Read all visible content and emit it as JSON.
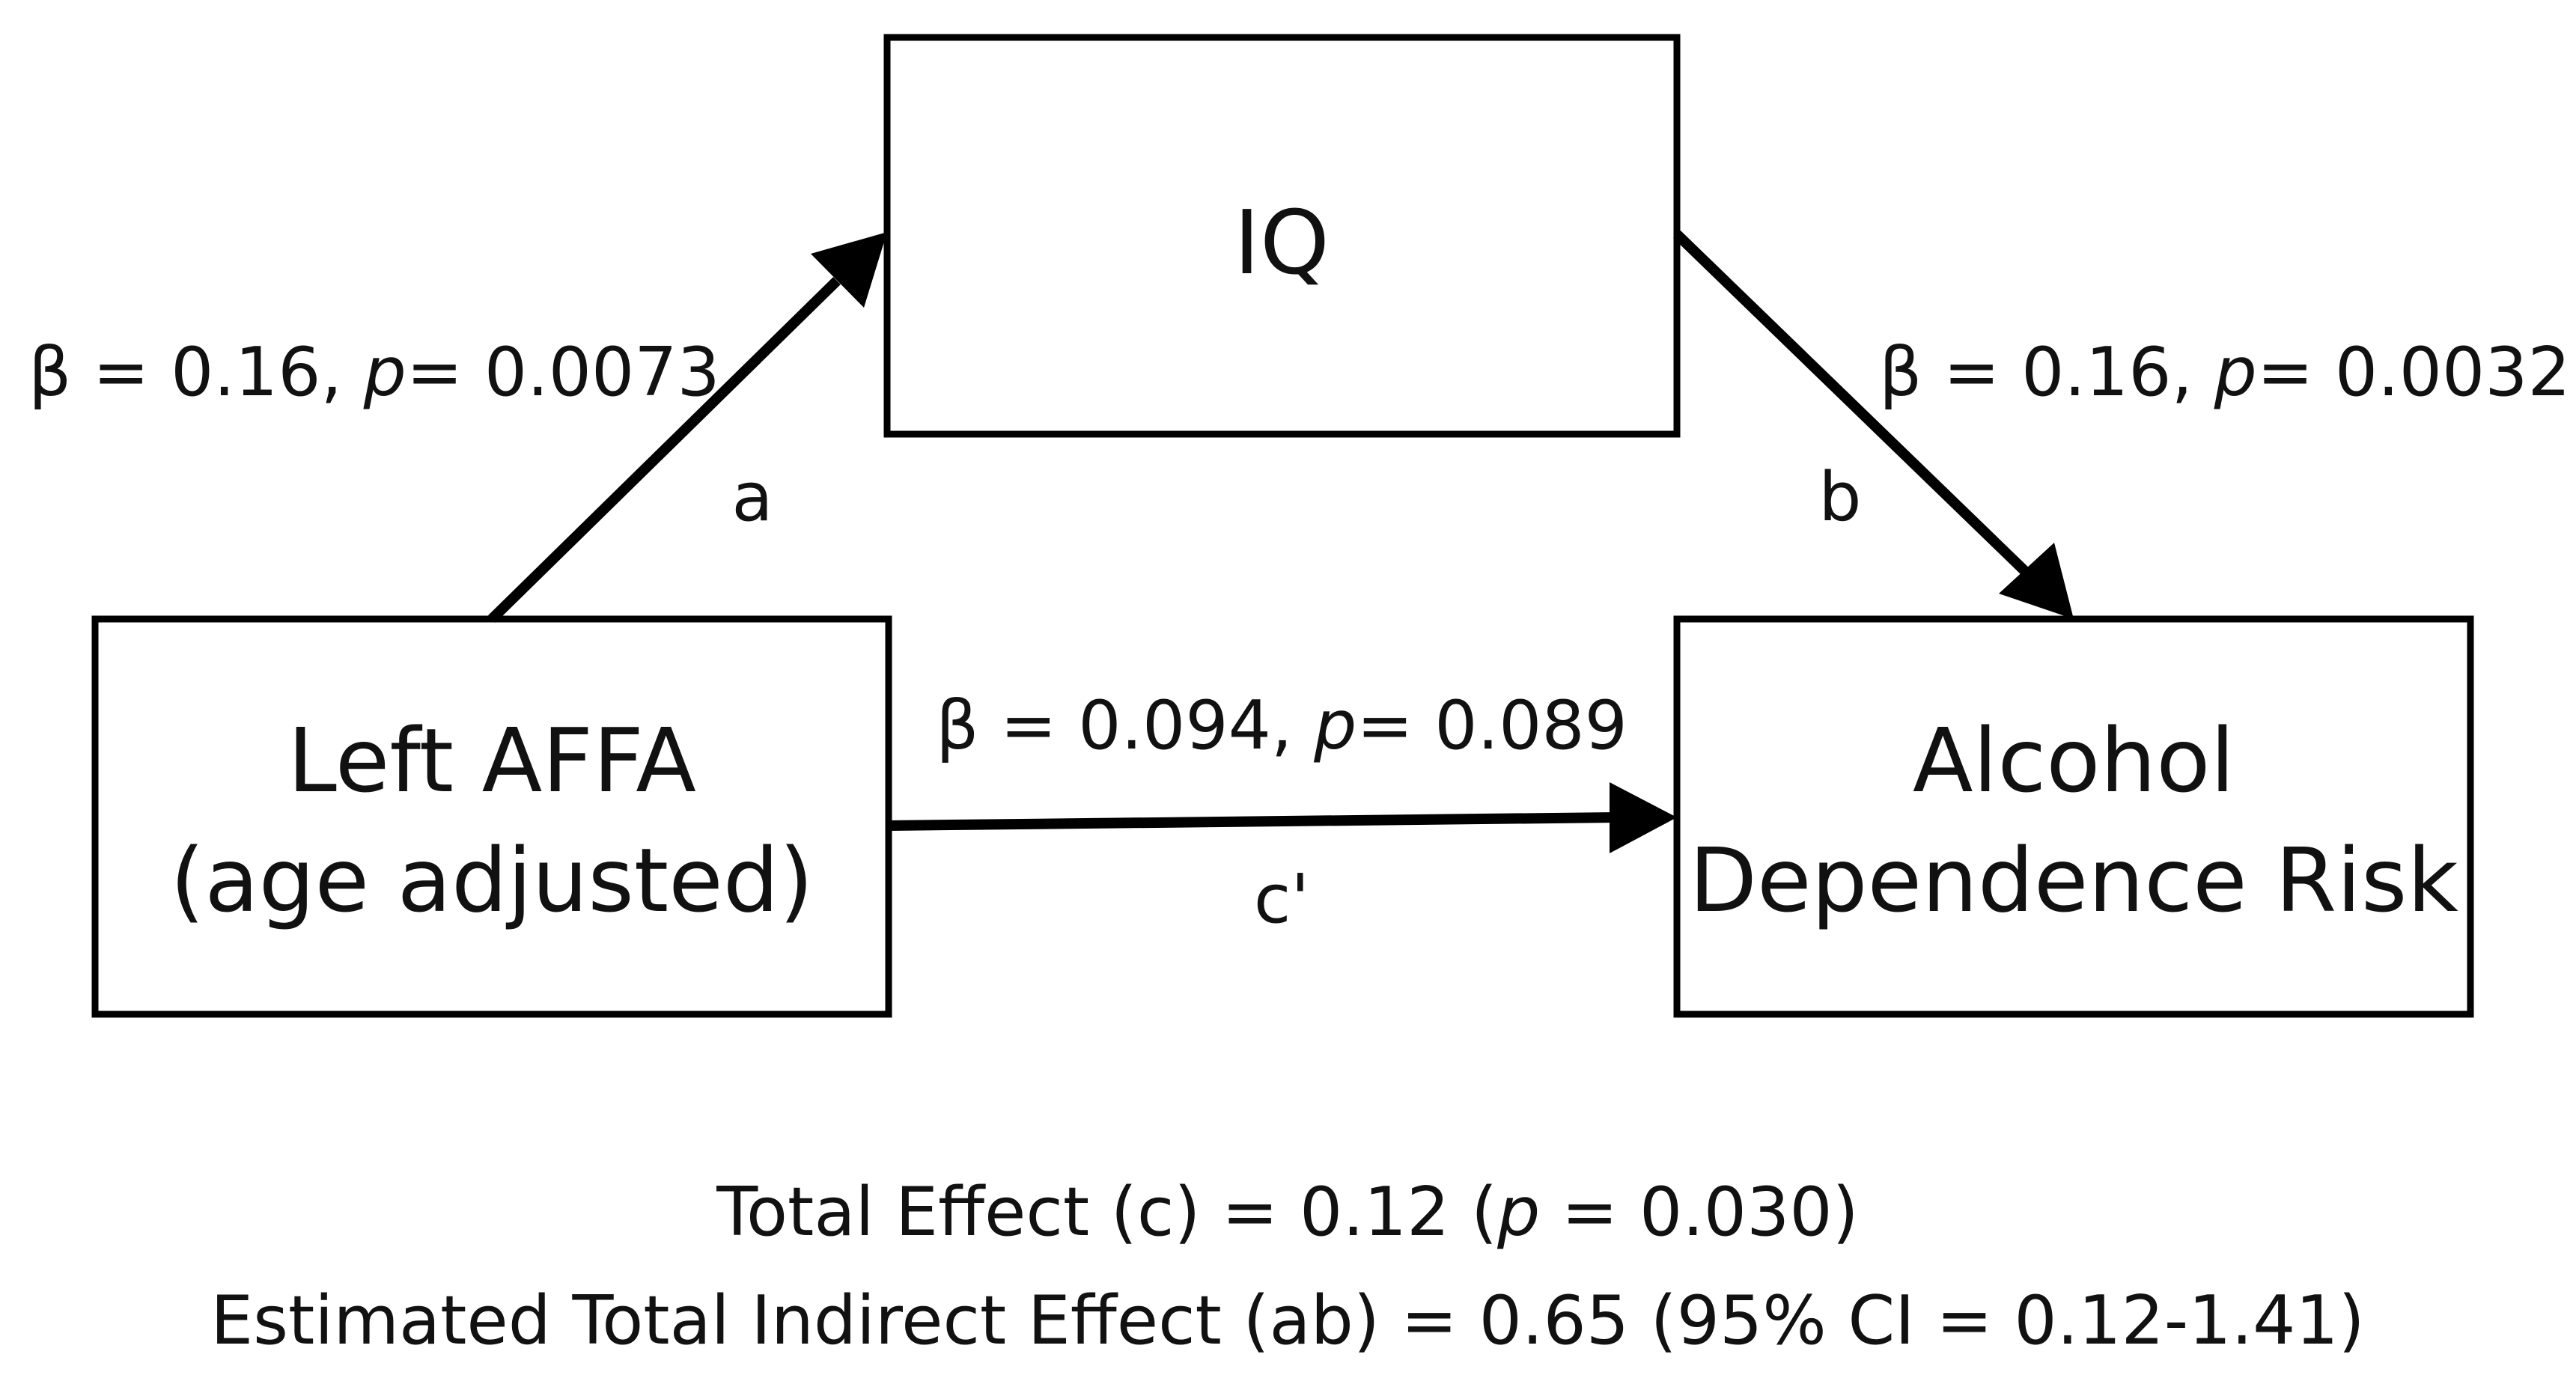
{
  "nodes": {
    "mediator": {
      "label": "IQ"
    },
    "predictor": {
      "line1": "Left AFFA",
      "line2": "(age adjusted)"
    },
    "outcome": {
      "line1": "Alcohol",
      "line2": "Dependence Risk"
    }
  },
  "paths": {
    "a": {
      "letter": "a",
      "beta_text": "β = 0.16, ",
      "p_symbol": "p",
      "p_text": "= 0.0073"
    },
    "b": {
      "letter": "b",
      "beta_text": "β = 0.16, ",
      "p_symbol": "p",
      "p_text": "= 0.0032"
    },
    "c_prime": {
      "letter": "c'",
      "beta_text": "β = 0.094, ",
      "p_symbol": "p",
      "p_text": "= 0.089"
    }
  },
  "summary": {
    "total_prefix": "Total Effect (c) = 0.12 (",
    "total_p_symbol": "p",
    "total_suffix": " = 0.030)",
    "indirect": "Estimated Total Indirect Effect (ab) = 0.65 (95% CI = 0.12-1.41)"
  }
}
